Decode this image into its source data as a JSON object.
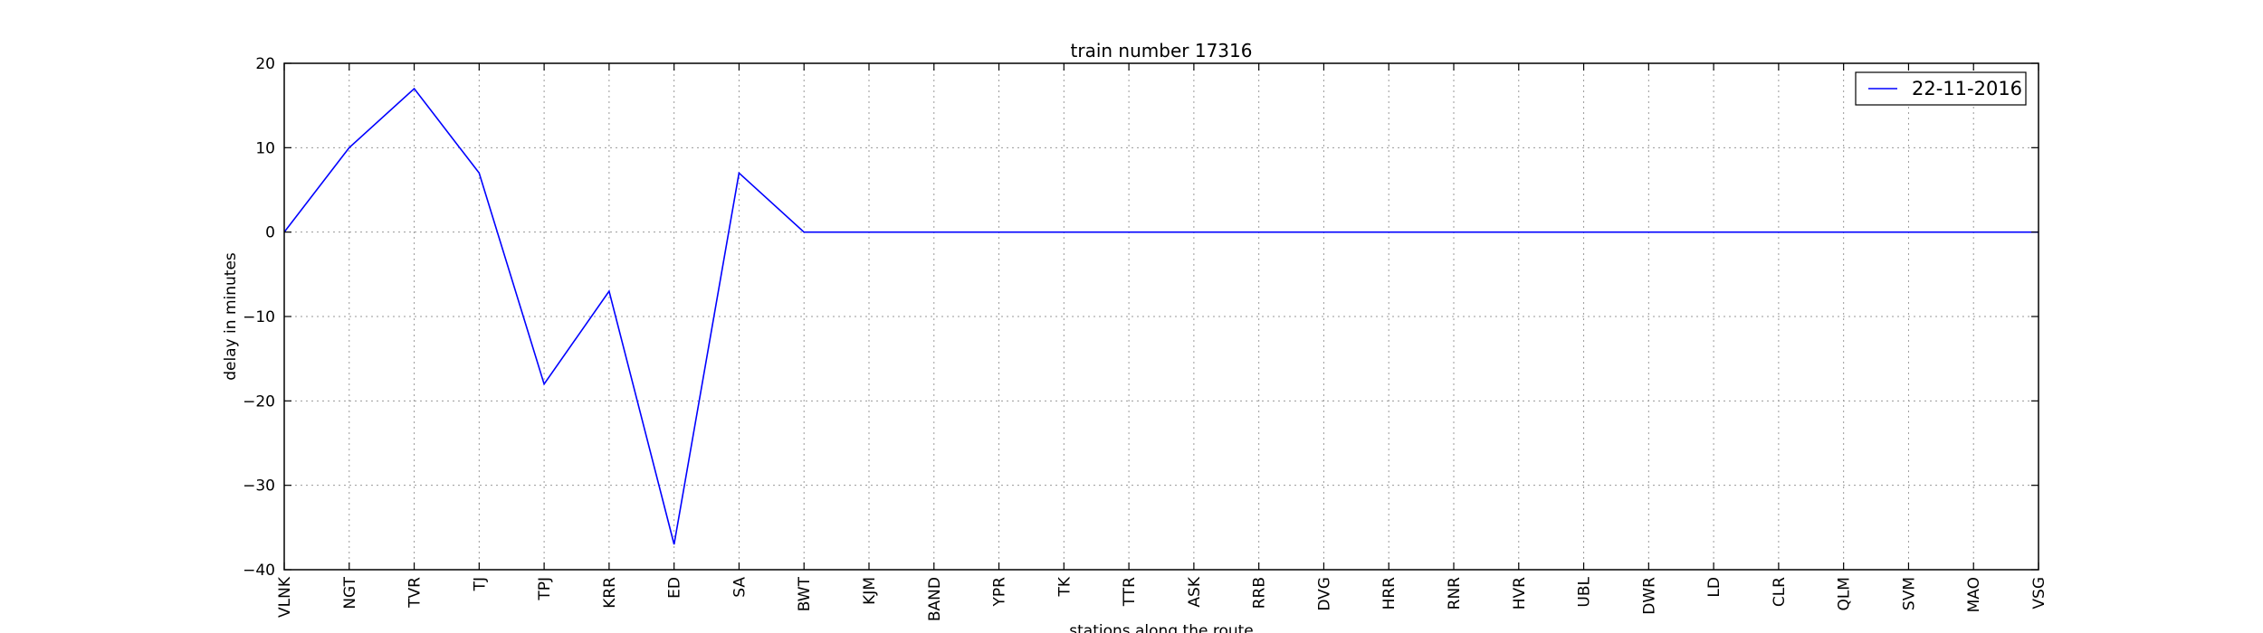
{
  "chart_data": {
    "type": "line",
    "title": "train number 17316",
    "xlabel": "stations along the route",
    "ylabel": "delay in minutes",
    "categories": [
      "VLNK",
      "NGT",
      "TVR",
      "TJ",
      "TPJ",
      "KRR",
      "ED",
      "SA",
      "BWT",
      "KJM",
      "BAND",
      "YPR",
      "TK",
      "TTR",
      "ASK",
      "RRB",
      "DVG",
      "HRR",
      "RNR",
      "HVR",
      "UBL",
      "DWR",
      "LD",
      "CLR",
      "QLM",
      "SVM",
      "MAO",
      "VSG"
    ],
    "series": [
      {
        "name": "22-11-2016",
        "color": "#0000ff",
        "values": [
          0,
          10,
          17,
          7,
          -18,
          -7,
          -37,
          7,
          0,
          0,
          0,
          0,
          0,
          0,
          0,
          0,
          0,
          0,
          0,
          0,
          0,
          0,
          0,
          0,
          0,
          0,
          0,
          0
        ]
      }
    ],
    "ylim": [
      -40,
      20
    ],
    "yticks": [
      20,
      10,
      0,
      -10,
      -20,
      -30,
      -40
    ],
    "grid": true,
    "legend_position": "top-right"
  }
}
